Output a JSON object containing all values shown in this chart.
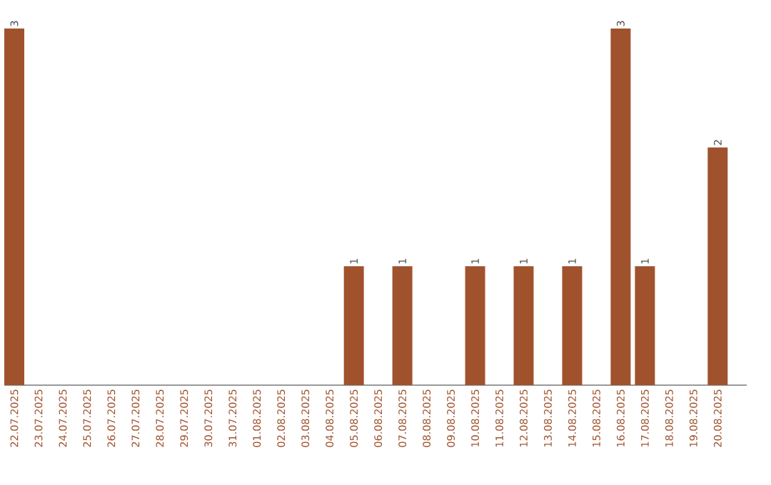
{
  "chart_data": {
    "type": "bar",
    "categories": [
      "22.07.2025",
      "23.07.2025",
      "24.07.2025",
      "25.07.2025",
      "26.07.2025",
      "27.07.2025",
      "28.07.2025",
      "29.07.2025",
      "30.07.2025",
      "31.07.2025",
      "01.08.2025",
      "02.08.2025",
      "03.08.2025",
      "04.08.2025",
      "05.08.2025",
      "06.08.2025",
      "07.08.2025",
      "08.08.2025",
      "09.08.2025",
      "10.08.2025",
      "11.08.2025",
      "12.08.2025",
      "13.08.2025",
      "14.08.2025",
      "15.08.2025",
      "16.08.2025",
      "17.08.2025",
      "18.08.2025",
      "19.08.2025",
      "20.08.2025"
    ],
    "values": [
      3,
      0,
      0,
      0,
      0,
      0,
      0,
      0,
      0,
      0,
      0,
      0,
      0,
      0,
      1,
      0,
      1,
      0,
      0,
      1,
      0,
      1,
      0,
      1,
      0,
      3,
      1,
      0,
      0,
      2
    ],
    "value_labels": [
      "3",
      null,
      null,
      null,
      null,
      null,
      null,
      null,
      null,
      null,
      null,
      null,
      null,
      null,
      "1",
      null,
      "1",
      null,
      null,
      "1",
      null,
      "1",
      null,
      "1",
      null,
      "3",
      "1",
      null,
      null,
      "2"
    ],
    "color": "#a0522d"
  }
}
